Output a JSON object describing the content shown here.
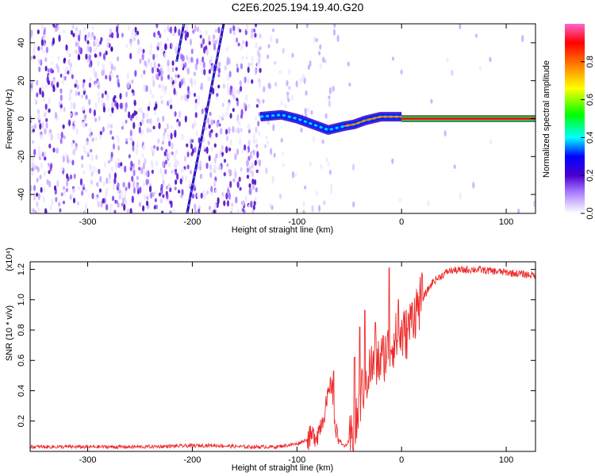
{
  "title": "C2E6.2025.194.19.40.G20",
  "chart_data": [
    {
      "type": "heatmap",
      "xlabel": "Height of straight line (km)",
      "ylabel": "Frequency (Hz)",
      "xlim": [
        -355,
        128
      ],
      "ylim": [
        -50,
        50
      ],
      "xticks": [
        -300,
        -200,
        -100,
        0,
        100
      ],
      "yticks": [
        -40,
        -20,
        0,
        20,
        40
      ],
      "colorbar": {
        "label": "Normalized spectral amplitude",
        "range": [
          0,
          1
        ],
        "ticks": [
          "0.0",
          "0.2",
          "0.4",
          "0.6",
          "0.8"
        ],
        "colors": [
          "#ffffff",
          "#a070ff",
          "#4a00cc",
          "#0000ff",
          "#00ffff",
          "#00ff00",
          "#ffff00",
          "#ff8000",
          "#ff0000",
          "#ff66cc"
        ]
      },
      "features": {
        "steady_line": {
          "x_start": 0,
          "x_end": 128,
          "frequency": 0,
          "amplitude": 1.0
        },
        "wandering_band": [
          {
            "x": -135,
            "frequency": 1
          },
          {
            "x": -115,
            "frequency": 2
          },
          {
            "x": -100,
            "frequency": 0
          },
          {
            "x": -85,
            "frequency": -3
          },
          {
            "x": -70,
            "frequency": -6
          },
          {
            "x": -55,
            "frequency": -4
          },
          {
            "x": -45,
            "frequency": -3
          },
          {
            "x": -35,
            "frequency": -1
          },
          {
            "x": -20,
            "frequency": 1
          },
          {
            "x": 0,
            "frequency": 1
          }
        ],
        "streaks": [
          {
            "x0": -205,
            "f0": -50,
            "x1": -170,
            "f1": 50
          },
          {
            "x0": -215,
            "f0": 30,
            "x1": -208,
            "f1": 50
          }
        ]
      }
    },
    {
      "type": "line",
      "xlabel": "Height of straight line (km)",
      "ylabel": "SNR (10 * v/v)",
      "y_multiplier": "(x10⁴)",
      "xlim": [
        -355,
        128
      ],
      "ylim": [
        0,
        1.25
      ],
      "xticks": [
        -300,
        -200,
        -100,
        0,
        100
      ],
      "yticks": [
        "0.2",
        "0.4",
        "0.6",
        "0.8",
        "1.0",
        "1.2"
      ],
      "color": "#ee2a2a",
      "profile": [
        {
          "x": -355,
          "y": 0.03
        },
        {
          "x": -250,
          "y": 0.03
        },
        {
          "x": -180,
          "y": 0.04
        },
        {
          "x": -150,
          "y": 0.03
        },
        {
          "x": -120,
          "y": 0.03
        },
        {
          "x": -100,
          "y": 0.05
        },
        {
          "x": -90,
          "y": 0.08
        },
        {
          "x": -80,
          "y": 0.12
        },
        {
          "x": -72,
          "y": 0.3
        },
        {
          "x": -67,
          "y": 0.45
        },
        {
          "x": -63,
          "y": 0.12
        },
        {
          "x": -55,
          "y": 0.03
        },
        {
          "x": -45,
          "y": 0.1
        },
        {
          "x": -38,
          "y": 0.4
        },
        {
          "x": -30,
          "y": 0.55
        },
        {
          "x": -20,
          "y": 0.6
        },
        {
          "x": -5,
          "y": 0.75
        },
        {
          "x": 5,
          "y": 0.78
        },
        {
          "x": 15,
          "y": 0.95
        },
        {
          "x": 30,
          "y": 1.12
        },
        {
          "x": 45,
          "y": 1.19
        },
        {
          "x": 70,
          "y": 1.2
        },
        {
          "x": 100,
          "y": 1.18
        },
        {
          "x": 128,
          "y": 1.16
        }
      ],
      "spikes": [
        {
          "x": -65,
          "y": 0.53
        },
        {
          "x": -45,
          "y": 0.62
        },
        {
          "x": -40,
          "y": 0.82
        },
        {
          "x": -35,
          "y": 0.93
        },
        {
          "x": -25,
          "y": 0.85
        },
        {
          "x": -12,
          "y": 1.21
        },
        {
          "x": -3,
          "y": 1.0
        },
        {
          "x": 10,
          "y": 0.98
        }
      ]
    }
  ]
}
